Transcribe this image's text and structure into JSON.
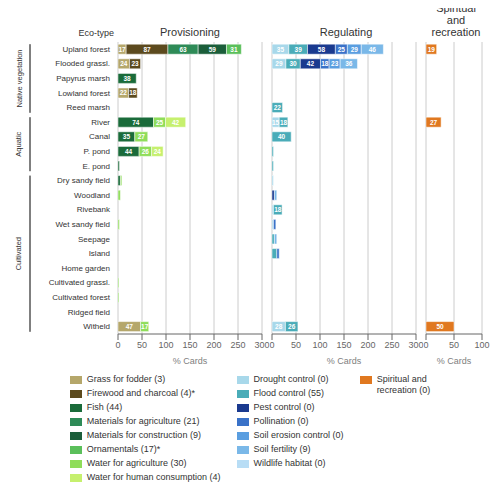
{
  "chart_data": [
    {
      "type": "bar",
      "orientation": "horizontal",
      "stacked": true,
      "title": "Provisioning",
      "xlabel": "% Cards",
      "ylabel": "Eco-type",
      "categories": [
        "Upland forest",
        "Flooded grassl.",
        "Papyrus marsh",
        "Lowland forest",
        "Reed marsh",
        "River",
        "Canal",
        "P. pond",
        "E. pond",
        "Dry sandy field",
        "Woodland",
        "Rivebank",
        "Wet sandy field",
        "Seepage",
        "Island",
        "Home garden",
        "Cultivated grassl.",
        "Cultivated forest",
        "Ridged field",
        "Witheld"
      ],
      "groups": [
        {
          "label": "Native vegetation",
          "first": "Upland forest",
          "last": "Reed marsh"
        },
        {
          "label": "Aquatic",
          "first": "River",
          "last": "E. pond"
        },
        {
          "label": "Cultivated",
          "first": "Dry sandy field",
          "last": "Witheld"
        }
      ],
      "series": [
        {
          "name": "Grass for fodder (3)",
          "color": "#b5a76b",
          "values": [
            17,
            24,
            0,
            22,
            0,
            0,
            0,
            0,
            0,
            0,
            0,
            0,
            0,
            0,
            0,
            0,
            0,
            0,
            0,
            47
          ],
          "value_labels": [
            "17",
            "24",
            null,
            "22",
            null,
            null,
            null,
            null,
            null,
            null,
            null,
            null,
            null,
            null,
            null,
            null,
            null,
            null,
            null,
            "47"
          ]
        },
        {
          "name": "Firewood and charcoal (4)*",
          "color": "#5c4a1e",
          "values": [
            87,
            23,
            0,
            18,
            0,
            0,
            0,
            0,
            0,
            0,
            0,
            0,
            0,
            0,
            0,
            0,
            0,
            0,
            0,
            0
          ],
          "value_labels": [
            "87",
            "23",
            null,
            "18",
            null,
            null,
            null,
            null,
            null,
            null,
            null,
            null,
            null,
            null,
            null,
            null,
            null,
            null,
            null,
            null
          ]
        },
        {
          "name": "Fish (44)",
          "color": "#1a6b3a",
          "values": [
            0,
            0,
            38,
            0,
            0,
            74,
            35,
            44,
            3,
            5,
            0,
            0,
            0,
            0,
            0,
            0,
            0,
            0,
            0,
            0
          ],
          "value_labels": [
            null,
            null,
            "38",
            null,
            null,
            "74",
            "35",
            "44",
            null,
            null,
            null,
            null,
            null,
            null,
            null,
            null,
            null,
            null,
            null,
            null
          ]
        },
        {
          "name": "Materials for agriculture (21)",
          "color": "#2e8b57",
          "values": [
            63,
            0,
            0,
            0,
            0,
            0,
            0,
            0,
            0,
            0,
            0,
            0,
            0,
            0,
            0,
            0,
            0,
            0,
            0,
            0
          ],
          "value_labels": [
            "63",
            null,
            null,
            null,
            null,
            null,
            null,
            null,
            null,
            null,
            null,
            null,
            null,
            null,
            null,
            null,
            null,
            null,
            null,
            null
          ]
        },
        {
          "name": "Materials for construction (9)",
          "color": "#1b5e3a",
          "values": [
            59,
            0,
            0,
            0,
            0,
            0,
            0,
            0,
            0,
            0,
            0,
            0,
            0,
            0,
            0,
            0,
            0,
            0,
            0,
            0
          ],
          "value_labels": [
            "59",
            null,
            null,
            null,
            null,
            null,
            null,
            null,
            null,
            null,
            null,
            null,
            null,
            null,
            null,
            null,
            null,
            null,
            null,
            null
          ]
        },
        {
          "name": "Ornamentals (17)*",
          "color": "#5bbf5b",
          "values": [
            31,
            0,
            0,
            0,
            0,
            0,
            0,
            0,
            0,
            0,
            0,
            0,
            0,
            0,
            0,
            0,
            0,
            0,
            0,
            0
          ],
          "value_labels": [
            "31",
            null,
            null,
            null,
            null,
            null,
            null,
            null,
            null,
            null,
            null,
            null,
            null,
            null,
            null,
            null,
            null,
            null,
            null,
            null
          ]
        },
        {
          "name": "Water for agriculture (30)",
          "color": "#8fdd5a",
          "values": [
            0,
            0,
            0,
            0,
            0,
            25,
            27,
            26,
            0,
            3,
            5,
            0,
            3,
            0,
            0,
            0,
            2,
            2,
            0,
            17
          ],
          "value_labels": [
            null,
            null,
            null,
            null,
            null,
            "25",
            "27",
            "26",
            null,
            null,
            null,
            null,
            null,
            null,
            null,
            null,
            null,
            null,
            null,
            "17"
          ]
        },
        {
          "name": "Water for human consumption (4)",
          "color": "#c6f06e",
          "values": [
            0,
            0,
            0,
            0,
            0,
            42,
            0,
            24,
            0,
            0,
            0,
            0,
            0,
            0,
            0,
            0,
            0,
            0,
            0,
            0
          ],
          "value_labels": [
            null,
            null,
            null,
            null,
            null,
            "42",
            null,
            "24",
            null,
            null,
            null,
            null,
            null,
            null,
            null,
            null,
            null,
            null,
            null,
            null
          ]
        }
      ],
      "xlim": [
        0,
        300
      ],
      "xticks": [
        0,
        50,
        100,
        150,
        200,
        250,
        300
      ],
      "grid": true,
      "data_labels": true,
      "legend": "bottom"
    },
    {
      "type": "bar",
      "orientation": "horizontal",
      "stacked": true,
      "title": "Regulating",
      "xlabel": "% Cards",
      "tick_labels": "x",
      "categories": [
        "Upland forest",
        "Flooded grassl.",
        "Papyrus marsh",
        "Lowland forest",
        "Reed marsh",
        "River",
        "Canal",
        "P. pond",
        "E. pond",
        "Dry sandy field",
        "Woodland",
        "Rivebank",
        "Wet sandy field",
        "Seepage",
        "Island",
        "Home garden",
        "Cultivated grassl.",
        "Cultivated forest",
        "Ridged field",
        "Witheld"
      ],
      "series": [
        {
          "name": "Drought control (0)",
          "color": "#a8d8ea",
          "values": [
            35,
            29,
            0,
            0,
            0,
            15,
            0,
            0,
            0,
            3,
            0,
            3,
            3,
            0,
            0,
            0,
            0,
            0,
            0,
            28
          ],
          "value_labels": [
            "35",
            "29",
            null,
            null,
            null,
            "15",
            null,
            null,
            null,
            null,
            null,
            null,
            null,
            null,
            null,
            null,
            null,
            null,
            null,
            "28"
          ]
        },
        {
          "name": "Flood control (55)",
          "color": "#4aacb8",
          "values": [
            39,
            30,
            0,
            0,
            22,
            18,
            40,
            3,
            3,
            0,
            0,
            18,
            0,
            5,
            10,
            0,
            0,
            0,
            0,
            26
          ],
          "value_labels": [
            "39",
            "30",
            null,
            null,
            "22",
            "18",
            "40",
            null,
            null,
            null,
            null,
            "18",
            null,
            null,
            null,
            null,
            null,
            null,
            null,
            "26"
          ]
        },
        {
          "name": "Pest control (0)",
          "color": "#1a3a8f",
          "values": [
            58,
            42,
            0,
            0,
            0,
            0,
            0,
            0,
            0,
            0,
            5,
            0,
            0,
            0,
            0,
            0,
            0,
            0,
            0,
            0
          ],
          "value_labels": [
            "58",
            "42",
            null,
            null,
            null,
            null,
            null,
            null,
            null,
            null,
            null,
            null,
            null,
            null,
            null,
            null,
            null,
            null,
            null,
            null
          ]
        },
        {
          "name": "Pollination (0)",
          "color": "#3a72c8",
          "values": [
            25,
            18,
            0,
            0,
            0,
            0,
            0,
            0,
            0,
            0,
            0,
            0,
            5,
            0,
            5,
            0,
            0,
            0,
            0,
            0
          ],
          "value_labels": [
            "25",
            "18",
            null,
            null,
            null,
            null,
            null,
            null,
            null,
            null,
            null,
            null,
            null,
            null,
            null,
            null,
            null,
            null,
            null,
            null
          ]
        },
        {
          "name": "Soil erosion control (0)",
          "color": "#5a9ee0",
          "values": [
            29,
            23,
            0,
            0,
            0,
            0,
            0,
            0,
            0,
            0,
            0,
            0,
            0,
            0,
            0,
            0,
            0,
            0,
            0,
            0
          ],
          "value_labels": [
            "29",
            "23",
            null,
            null,
            null,
            null,
            null,
            null,
            null,
            null,
            null,
            null,
            null,
            null,
            null,
            null,
            null,
            null,
            null,
            null
          ]
        },
        {
          "name": "Soil fertility (9)",
          "color": "#7ab8e8",
          "values": [
            46,
            36,
            0,
            0,
            0,
            0,
            0,
            0,
            0,
            0,
            5,
            0,
            0,
            5,
            0,
            0,
            0,
            0,
            0,
            0
          ],
          "value_labels": [
            "46",
            "36",
            null,
            null,
            null,
            null,
            null,
            null,
            null,
            null,
            null,
            null,
            null,
            null,
            null,
            null,
            null,
            null,
            null,
            null
          ]
        },
        {
          "name": "Wildlife habitat (0)",
          "color": "#b8ddf5",
          "values": [
            0,
            0,
            0,
            0,
            0,
            0,
            0,
            0,
            0,
            0,
            0,
            0,
            0,
            0,
            0,
            0,
            0,
            0,
            0,
            0
          ],
          "value_labels": [
            null,
            null,
            null,
            null,
            null,
            null,
            null,
            null,
            null,
            null,
            null,
            null,
            null,
            null,
            null,
            null,
            null,
            null,
            null,
            null
          ]
        }
      ],
      "xlim": [
        0,
        300
      ],
      "xticks": [
        0,
        50,
        100,
        150,
        200,
        250,
        300
      ],
      "grid": true,
      "data_labels": true,
      "legend": "bottom"
    },
    {
      "type": "bar",
      "orientation": "horizontal",
      "stacked": true,
      "title": "Spiritual and\nrecreation",
      "xlabel": "% Cards",
      "tick_labels": "x",
      "categories": [
        "Upland forest",
        "Flooded grassl.",
        "Papyrus marsh",
        "Lowland forest",
        "Reed marsh",
        "River",
        "Canal",
        "P. pond",
        "E. pond",
        "Dry sandy field",
        "Woodland",
        "Rivebank",
        "Wet sandy field",
        "Seepage",
        "Island",
        "Home garden",
        "Cultivated grassl.",
        "Cultivated forest",
        "Ridged field",
        "Witheld"
      ],
      "series": [
        {
          "name": "Spiritual and\nrecreation (0)",
          "color": "#e07820",
          "values": [
            19,
            0,
            0,
            0,
            0,
            27,
            0,
            0,
            0,
            0,
            0,
            0,
            0,
            0,
            0,
            0,
            0,
            0,
            0,
            50
          ],
          "value_labels": [
            "19",
            null,
            null,
            null,
            null,
            "27",
            null,
            null,
            null,
            null,
            null,
            null,
            null,
            null,
            null,
            null,
            null,
            null,
            null,
            "50"
          ]
        }
      ],
      "xlim": [
        0,
        100
      ],
      "xticks": [
        0,
        50,
        100
      ],
      "grid": true,
      "data_labels": true,
      "legend": "bottom"
    }
  ]
}
